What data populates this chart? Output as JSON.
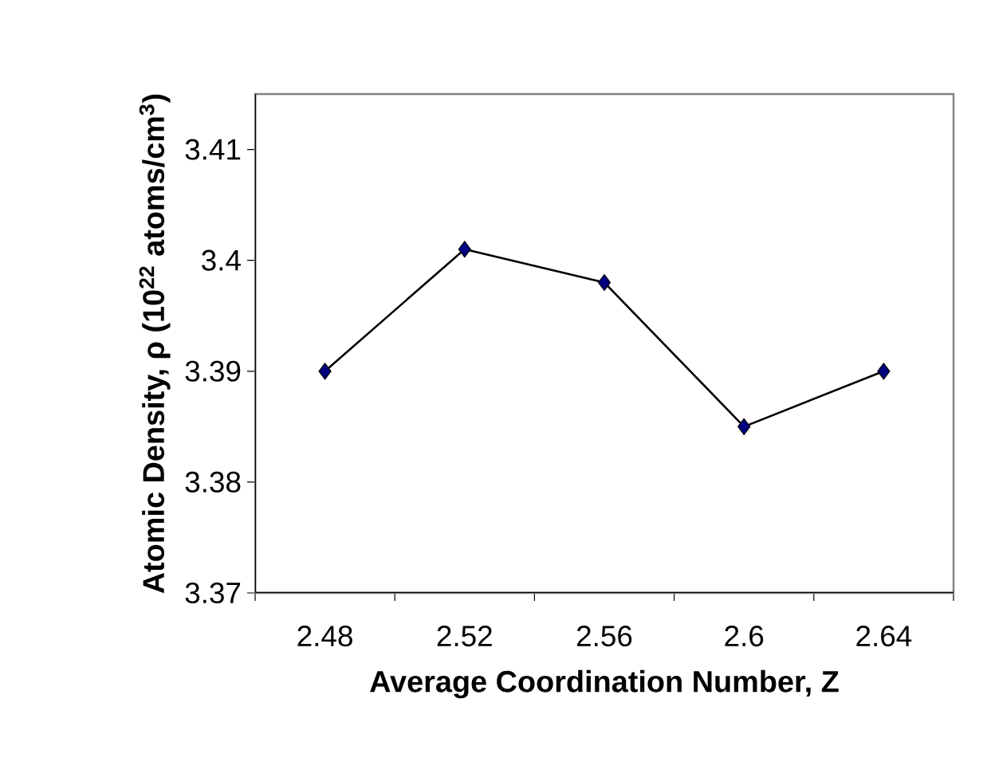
{
  "chart_data": {
    "type": "line",
    "xlabel": "Average Coordination Number, Z",
    "ylabel": "Atomic Density, ρ (10$^{22}$ atoms/cm$^{3}$)",
    "categories": [
      "2.48",
      "2.52",
      "2.56",
      "2.6",
      "2.64"
    ],
    "series": [
      {
        "color": "#000080",
        "values": [
          3.39,
          3.401,
          3.398,
          3.385,
          3.39
        ]
      }
    ],
    "ylim": [
      3.37,
      3.415
    ],
    "yticks": [
      3.37,
      3.38,
      3.39,
      3.4,
      3.41
    ],
    "marker": "diamond",
    "line_style": "solid",
    "grid": false
  }
}
